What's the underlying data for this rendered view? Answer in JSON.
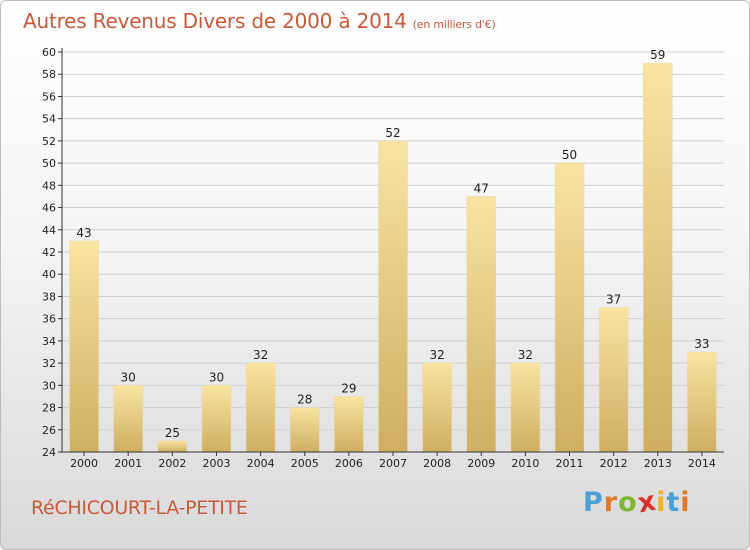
{
  "header": {
    "title": "Autres Revenus Divers de 2000 à 2014",
    "subtitle": "(en milliers d'€)"
  },
  "footer": {
    "commune": "RéCHICOURT-LA-PETITE",
    "logo_letters": [
      "P",
      "r",
      "o",
      "x",
      "i",
      "t",
      "i"
    ],
    "logo_colors": [
      "#4a9fd5",
      "#e0782a",
      "#7fb52f",
      "#d8302c",
      "#f0b323",
      "#4a9fd5",
      "#e0782a"
    ]
  },
  "colors": {
    "title": "#c85a3a",
    "bar_light": "#f8e4a0",
    "bar_dark": "#cfae62",
    "grid": "#cfcfcf"
  },
  "chart_data": {
    "type": "bar",
    "title": "Autres Revenus Divers de 2000 à 2014",
    "subtitle": "(en milliers d'€)",
    "categories": [
      "2000",
      "2001",
      "2002",
      "2003",
      "2004",
      "2005",
      "2006",
      "2007",
      "2008",
      "2009",
      "2010",
      "2011",
      "2012",
      "2013",
      "2014"
    ],
    "values": [
      43,
      30,
      25,
      30,
      32,
      28,
      29,
      52,
      32,
      47,
      32,
      50,
      37,
      59,
      33
    ],
    "xlabel": "",
    "ylabel": "",
    "ylim": [
      24,
      60
    ],
    "yticks": [
      24,
      26,
      28,
      30,
      32,
      34,
      36,
      38,
      40,
      42,
      44,
      46,
      48,
      50,
      52,
      54,
      56,
      58,
      60
    ],
    "grid": true,
    "value_labels": true
  }
}
